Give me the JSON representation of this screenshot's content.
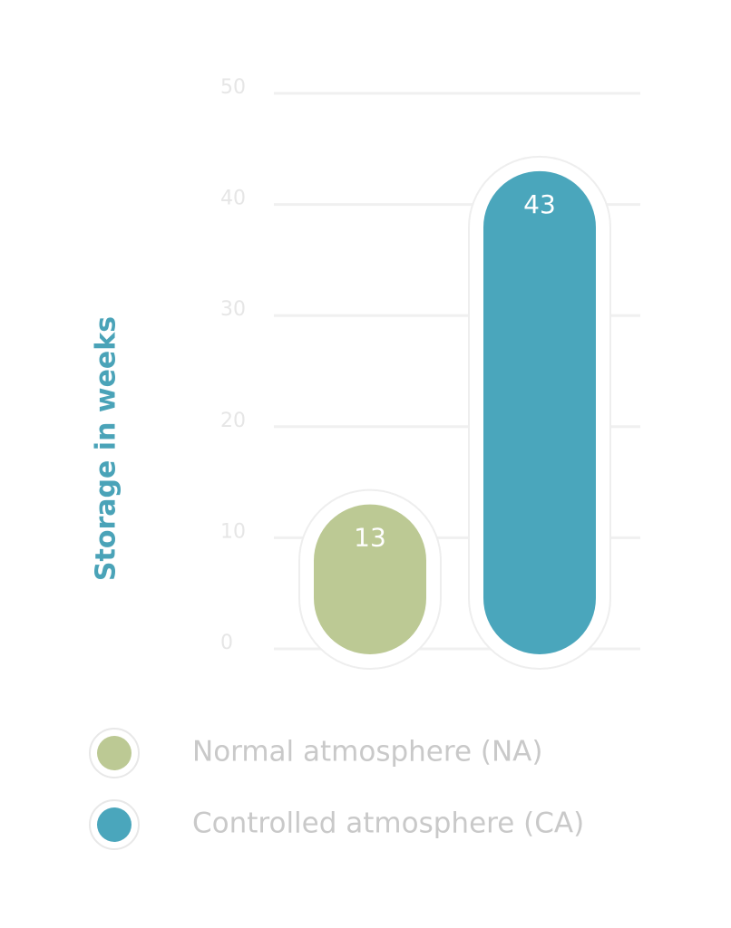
{
  "chart_data": {
    "type": "bar",
    "y_label": "Storage in weeks",
    "categories": [
      null
    ],
    "series": [
      {
        "name": "Normal atmosphere (NA)",
        "color": "#bcc994",
        "values": [
          13
        ]
      },
      {
        "name": "Controlled atmosphere (CA)",
        "color": "#4aa6bc",
        "values": [
          43
        ]
      }
    ],
    "ylim": [
      0,
      50
    ],
    "yticks": [
      0,
      10,
      20,
      30,
      40,
      50
    ],
    "grid": true
  }
}
